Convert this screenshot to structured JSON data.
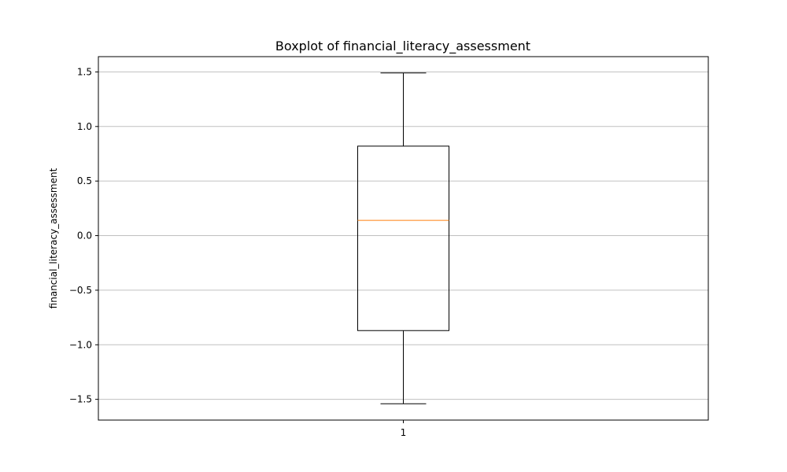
{
  "chart_data": {
    "type": "boxplot",
    "title": "Boxplot of financial_literacy_assessment",
    "xlabel": "",
    "ylabel": "financial_literacy_assessment",
    "categories": [
      "1"
    ],
    "boxes": [
      {
        "whisker_low": -1.54,
        "q1": -0.87,
        "median": 0.14,
        "q3": 0.82,
        "whisker_high": 1.49
      }
    ],
    "ylim": [
      -1.69,
      1.64
    ],
    "yticks": [
      1.5,
      1.0,
      0.5,
      0.0,
      -0.5,
      -1.0,
      -1.5
    ],
    "ytick_labels": [
      "1.5",
      "1.0",
      "0.5",
      "0.0",
      "−0.5",
      "−1.0",
      "−1.5"
    ],
    "grid": "y",
    "colors": {
      "box": "#000000",
      "median": "#ff7f0e",
      "grid": "#c0c0c0"
    }
  }
}
